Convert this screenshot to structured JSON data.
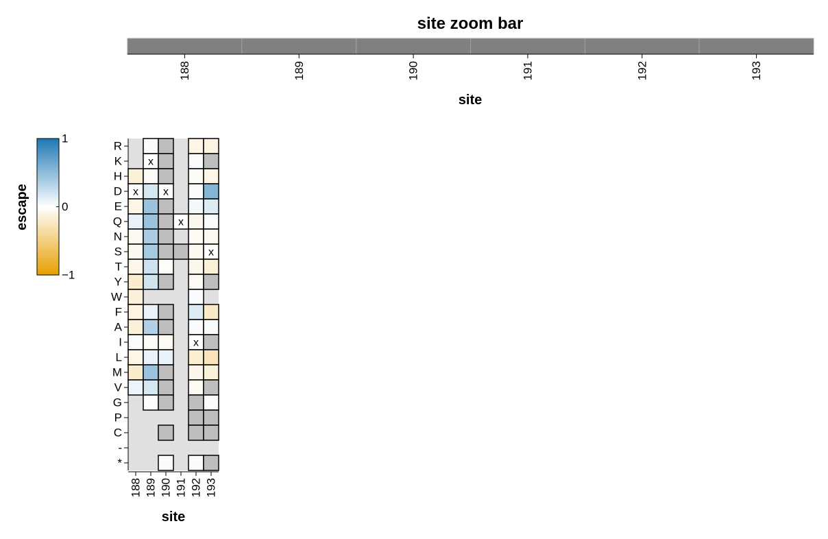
{
  "chart_data": [
    {
      "type": "bar",
      "title": "site zoom bar",
      "xlabel": "site",
      "sites": [
        "188",
        "189",
        "190",
        "191",
        "192",
        "193"
      ],
      "bar_color": "#808080"
    },
    {
      "type": "heatmap",
      "title": "",
      "xlabel": "site",
      "ylabel": "",
      "sites": [
        "188",
        "189",
        "190",
        "191",
        "192",
        "193"
      ],
      "mutants": [
        "R",
        "K",
        "H",
        "D",
        "E",
        "Q",
        "N",
        "S",
        "T",
        "Y",
        "W",
        "F",
        "A",
        "I",
        "L",
        "M",
        "V",
        "G",
        "P",
        "C",
        "-",
        "*"
      ],
      "legend": {
        "title": "escape",
        "ticks": [
          "1",
          "0",
          "−1"
        ],
        "domain": [
          -1,
          1
        ],
        "colors": {
          "high": "#1f78b4",
          "mid": "#ffffff",
          "low": "#e69f00"
        }
      },
      "colors": {
        "missing": "#bebebe",
        "background": "#e0e0e0",
        "stroke": "#000000"
      },
      "wildtype_mark": "x",
      "cells": [
        [
          null,
          0.02,
          "missing",
          null,
          -0.1,
          -0.12
        ],
        [
          null,
          "wt",
          "missing",
          null,
          0.02,
          "missing"
        ],
        [
          -0.15,
          -0.03,
          "missing",
          null,
          -0.03,
          -0.1
        ],
        [
          "wt",
          0.18,
          "wt",
          null,
          0.02,
          0.55
        ],
        [
          -0.1,
          0.45,
          "missing",
          null,
          0.05,
          0.15
        ],
        [
          0.1,
          0.45,
          "missing",
          "wt",
          -0.08,
          0.02
        ],
        [
          -0.06,
          0.38,
          "missing",
          null,
          -0.04,
          -0.06
        ],
        [
          -0.05,
          0.4,
          "missing",
          "missing",
          -0.06,
          "wt"
        ],
        [
          -0.08,
          0.22,
          -0.02,
          null,
          -0.07,
          -0.15
        ],
        [
          -0.2,
          0.2,
          "missing",
          null,
          -0.04,
          "missing"
        ],
        [
          -0.15,
          null,
          null,
          null,
          0.02,
          null
        ],
        [
          -0.12,
          0.1,
          "missing",
          null,
          0.15,
          -0.22
        ],
        [
          -0.15,
          0.35,
          "missing",
          null,
          0.02,
          0.02
        ],
        [
          0.02,
          -0.03,
          -0.04,
          null,
          "wt",
          "missing"
        ],
        [
          -0.1,
          0.1,
          0.1,
          null,
          -0.18,
          -0.28
        ],
        [
          -0.2,
          0.45,
          "missing",
          null,
          -0.08,
          -0.15
        ],
        [
          0.08,
          0.18,
          "missing",
          null,
          -0.04,
          "missing"
        ],
        [
          null,
          0.02,
          "missing",
          null,
          "missing",
          0.02
        ],
        [
          null,
          null,
          null,
          null,
          "missing",
          "missing"
        ],
        [
          null,
          null,
          "missing",
          null,
          "missing",
          "missing"
        ],
        [
          null,
          null,
          null,
          null,
          null,
          null
        ],
        [
          null,
          null,
          0.02,
          null,
          0.02,
          "missing"
        ]
      ]
    }
  ]
}
